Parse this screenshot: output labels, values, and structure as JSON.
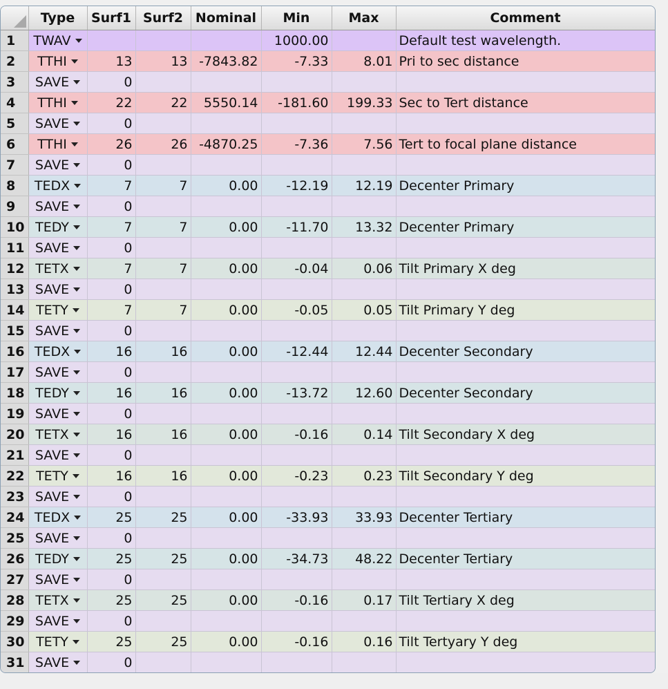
{
  "headers": [
    "",
    "Type",
    "Surf1",
    "Surf2",
    "Nominal",
    "Min",
    "Max",
    "Comment"
  ],
  "colors": {
    "TWAV": "#dcc4f7",
    "TTHI": "#f4c4c8",
    "SAVE": "#e6dcf0",
    "TEDX": "#d4e2ec",
    "TEDY": "#d6e4e6",
    "TETX": "#dae4e0",
    "TETY": "#e2e8da"
  },
  "rows": [
    {
      "n": "1",
      "type": "TWAV",
      "s1": "",
      "s2": "",
      "nom": "",
      "min": "1000.00",
      "max": "",
      "comment": "Default test wavelength."
    },
    {
      "n": "2",
      "type": "TTHI",
      "s1": "13",
      "s2": "13",
      "nom": "-7843.82",
      "min": "-7.33",
      "max": "8.01",
      "comment": "Pri to sec distance"
    },
    {
      "n": "3",
      "type": "SAVE",
      "s1": "0",
      "s2": "",
      "nom": "",
      "min": "",
      "max": "",
      "comment": ""
    },
    {
      "n": "4",
      "type": "TTHI",
      "s1": "22",
      "s2": "22",
      "nom": "5550.14",
      "min": "-181.60",
      "max": "199.33",
      "comment": "Sec to Tert distance"
    },
    {
      "n": "5",
      "type": "SAVE",
      "s1": "0",
      "s2": "",
      "nom": "",
      "min": "",
      "max": "",
      "comment": ""
    },
    {
      "n": "6",
      "type": "TTHI",
      "s1": "26",
      "s2": "26",
      "nom": "-4870.25",
      "min": "-7.36",
      "max": "7.56",
      "comment": "Tert to focal plane distance"
    },
    {
      "n": "7",
      "type": "SAVE",
      "s1": "0",
      "s2": "",
      "nom": "",
      "min": "",
      "max": "",
      "comment": ""
    },
    {
      "n": "8",
      "type": "TEDX",
      "s1": "7",
      "s2": "7",
      "nom": "0.00",
      "min": "-12.19",
      "max": "12.19",
      "comment": "Decenter Primary"
    },
    {
      "n": "9",
      "type": "SAVE",
      "s1": "0",
      "s2": "",
      "nom": "",
      "min": "",
      "max": "",
      "comment": ""
    },
    {
      "n": "10",
      "type": "TEDY",
      "s1": "7",
      "s2": "7",
      "nom": "0.00",
      "min": "-11.70",
      "max": "13.32",
      "comment": "Decenter Primary"
    },
    {
      "n": "11",
      "type": "SAVE",
      "s1": "0",
      "s2": "",
      "nom": "",
      "min": "",
      "max": "",
      "comment": ""
    },
    {
      "n": "12",
      "type": "TETX",
      "s1": "7",
      "s2": "7",
      "nom": "0.00",
      "min": "-0.04",
      "max": "0.06",
      "comment": "Tilt Primary X deg"
    },
    {
      "n": "13",
      "type": "SAVE",
      "s1": "0",
      "s2": "",
      "nom": "",
      "min": "",
      "max": "",
      "comment": ""
    },
    {
      "n": "14",
      "type": "TETY",
      "s1": "7",
      "s2": "7",
      "nom": "0.00",
      "min": "-0.05",
      "max": "0.05",
      "comment": "Tilt Primary Y deg"
    },
    {
      "n": "15",
      "type": "SAVE",
      "s1": "0",
      "s2": "",
      "nom": "",
      "min": "",
      "max": "",
      "comment": ""
    },
    {
      "n": "16",
      "type": "TEDX",
      "s1": "16",
      "s2": "16",
      "nom": "0.00",
      "min": "-12.44",
      "max": "12.44",
      "comment": "Decenter Secondary"
    },
    {
      "n": "17",
      "type": "SAVE",
      "s1": "0",
      "s2": "",
      "nom": "",
      "min": "",
      "max": "",
      "comment": ""
    },
    {
      "n": "18",
      "type": "TEDY",
      "s1": "16",
      "s2": "16",
      "nom": "0.00",
      "min": "-13.72",
      "max": "12.60",
      "comment": "Decenter Secondary"
    },
    {
      "n": "19",
      "type": "SAVE",
      "s1": "0",
      "s2": "",
      "nom": "",
      "min": "",
      "max": "",
      "comment": ""
    },
    {
      "n": "20",
      "type": "TETX",
      "s1": "16",
      "s2": "16",
      "nom": "0.00",
      "min": "-0.16",
      "max": "0.14",
      "comment": "Tilt Secondary X deg"
    },
    {
      "n": "21",
      "type": "SAVE",
      "s1": "0",
      "s2": "",
      "nom": "",
      "min": "",
      "max": "",
      "comment": ""
    },
    {
      "n": "22",
      "type": "TETY",
      "s1": "16",
      "s2": "16",
      "nom": "0.00",
      "min": "-0.23",
      "max": "0.23",
      "comment": "Tilt Secondary Y deg"
    },
    {
      "n": "23",
      "type": "SAVE",
      "s1": "0",
      "s2": "",
      "nom": "",
      "min": "",
      "max": "",
      "comment": ""
    },
    {
      "n": "24",
      "type": "TEDX",
      "s1": "25",
      "s2": "25",
      "nom": "0.00",
      "min": "-33.93",
      "max": "33.93",
      "comment": "Decenter Tertiary"
    },
    {
      "n": "25",
      "type": "SAVE",
      "s1": "0",
      "s2": "",
      "nom": "",
      "min": "",
      "max": "",
      "comment": ""
    },
    {
      "n": "26",
      "type": "TEDY",
      "s1": "25",
      "s2": "25",
      "nom": "0.00",
      "min": "-34.73",
      "max": "48.22",
      "comment": "Decenter Tertiary"
    },
    {
      "n": "27",
      "type": "SAVE",
      "s1": "0",
      "s2": "",
      "nom": "",
      "min": "",
      "max": "",
      "comment": ""
    },
    {
      "n": "28",
      "type": "TETX",
      "s1": "25",
      "s2": "25",
      "nom": "0.00",
      "min": "-0.16",
      "max": "0.17",
      "comment": "Tilt Tertiary X deg"
    },
    {
      "n": "29",
      "type": "SAVE",
      "s1": "0",
      "s2": "",
      "nom": "",
      "min": "",
      "max": "",
      "comment": ""
    },
    {
      "n": "30",
      "type": "TETY",
      "s1": "25",
      "s2": "25",
      "nom": "0.00",
      "min": "-0.16",
      "max": "0.16",
      "comment": "Tilt Tertyary Y deg"
    },
    {
      "n": "31",
      "type": "SAVE",
      "s1": "0",
      "s2": "",
      "nom": "",
      "min": "",
      "max": "",
      "comment": ""
    }
  ]
}
